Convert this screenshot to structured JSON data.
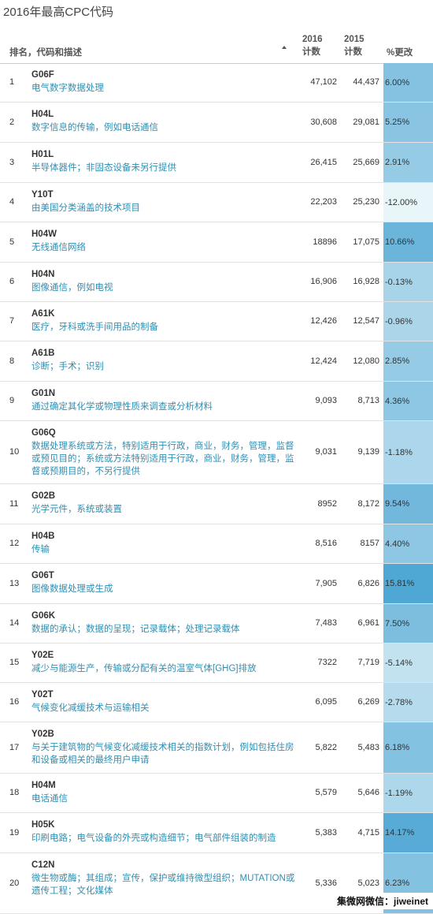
{
  "title": "2016年最高CPC代码",
  "table": {
    "headers": [
      "排名，代码和描述",
      "2016\n计数",
      "2015\n计数",
      "%更改"
    ],
    "rows": [
      [
        "1",
        "G06F",
        "电气数字数据处理",
        "47,102",
        "44,437",
        "6.00%"
      ],
      [
        "2",
        "H04L",
        "数字信息的传输，例如电话通信",
        "30,608",
        "29,081",
        "5.25%"
      ],
      [
        "3",
        "H01L",
        "半导体器件；非固态设备未另行提供",
        "26,415",
        "25,669",
        "2.91%"
      ],
      [
        "4",
        "Y10T",
        "由美国分类涵盖的技术项目",
        "22,203",
        "25,230",
        "-12.00%"
      ],
      [
        "5",
        "H04W",
        "无线通信网络",
        "18896",
        "17,075",
        "10.66%"
      ],
      [
        "6",
        "H04N",
        "图像通信，例如电视",
        "16,906",
        "16,928",
        "-0.13%"
      ],
      [
        "7",
        "A61K",
        "医疗，牙科或洗手间用品的制备",
        "12,426",
        "12,547",
        "-0.96%"
      ],
      [
        "8",
        "A61B",
        "诊断；手术；识别",
        "12,424",
        "12,080",
        "2.85%"
      ],
      [
        "9",
        "G01N",
        "通过确定其化学或物理性质来调查或分析材料",
        "9,093",
        "8,713",
        "4.36%"
      ],
      [
        "10",
        "G06Q",
        "数据处理系统或方法，特别适用于行政，商业，财务，管理，监督或预见目的；系统或方法特别适用于行政，商业，财务，管理，监督或预期目的，不另行提供",
        "9,031",
        "9,139",
        "-1.18%"
      ],
      [
        "11",
        "G02B",
        "光学元件，系统或装置",
        "8952",
        "8,172",
        "9.54%"
      ],
      [
        "12",
        "H04B",
        "传输",
        "8,516",
        "8157",
        "4.40%"
      ],
      [
        "13",
        "G06T",
        "图像数据处理或生成",
        "7,905",
        "6,826",
        "15.81%"
      ],
      [
        "14",
        "G06K",
        "数据的承认；数据的呈现；记录载体；处理记录载体",
        "7,483",
        "6,961",
        "7.50%"
      ],
      [
        "15",
        "Y02E",
        "减少与能源生产，传输或分配有关的温室气体[GHG]排放",
        "7322",
        "7,719",
        "-5.14%"
      ],
      [
        "16",
        "Y02T",
        "气候变化减缓技术与运输相关",
        "6,095",
        "6,269",
        "-2.78%"
      ],
      [
        "17",
        "Y02B",
        "与关于建筑物的气候变化减缓技术相关的指数计划，例如包括住房和设备或相关的最终用户申请",
        "5,822",
        "5,483",
        "6.18%"
      ],
      [
        "18",
        "H04M",
        "电话通信",
        "5,579",
        "5,646",
        "-1.19%"
      ],
      [
        "19",
        "H05K",
        "印刷电路；电气设备的外壳或构造细节；电气部件组装的制造",
        "5,383",
        "4,715",
        "14.17%"
      ],
      [
        "20",
        "C12N",
        "微生物或酶；其组成；宣传，保护或维持微型组织；MUTATION或遗传工程；文化媒体",
        "5,336",
        "5,023",
        "6.23%"
      ]
    ]
  },
  "watermark": "集微网微信：jiweinet"
}
